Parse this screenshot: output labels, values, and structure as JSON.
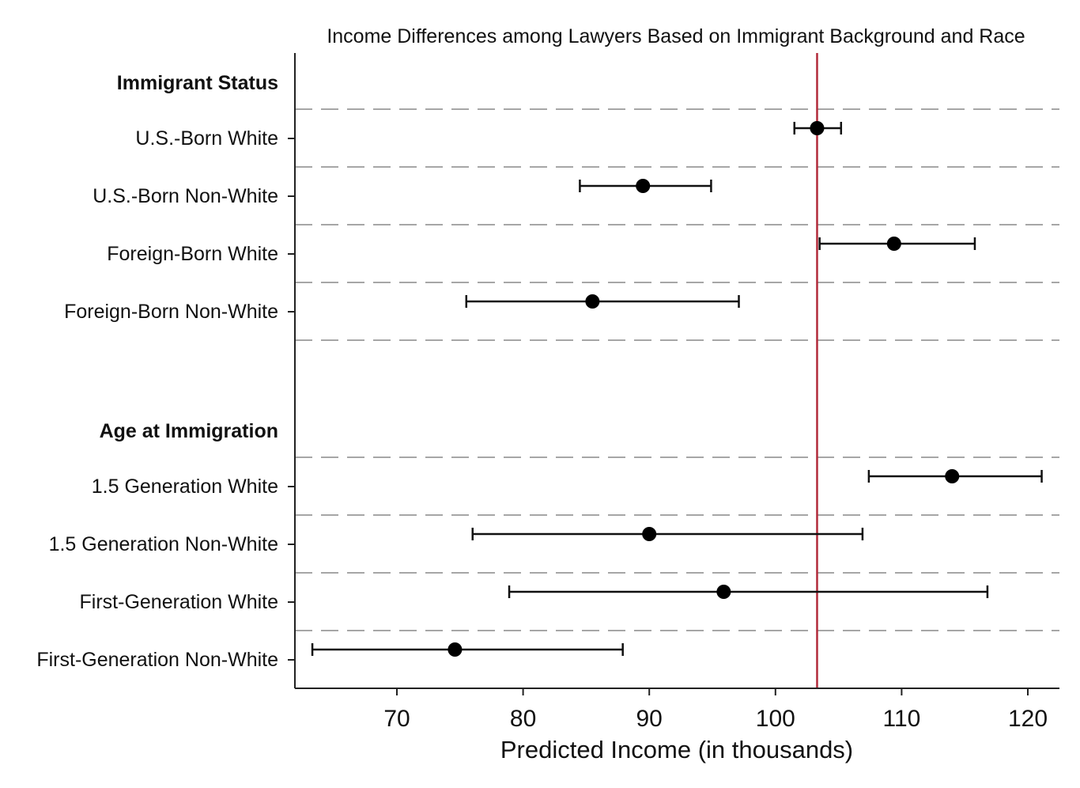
{
  "chart_data": {
    "type": "scatter",
    "title": "Income Differences among Lawyers Based on Immigrant Background and Race",
    "xlabel": "Predicted Income (in thousands)",
    "ylabel": "",
    "xlim": [
      62,
      123
    ],
    "xticks": [
      70,
      80,
      90,
      100,
      110,
      120
    ],
    "reference_line": {
      "x": 103.3,
      "color": "#b22a3a"
    },
    "grid": "dashed horizontal separators",
    "marker_color": "#000000",
    "groups": [
      {
        "label": "Immigrant Status",
        "rows": [
          {
            "label": "U.S.-Born White",
            "estimate": 103.3,
            "ci_low": 101.5,
            "ci_high": 105.2
          },
          {
            "label": "U.S.-Born Non-White",
            "estimate": 89.5,
            "ci_low": 84.5,
            "ci_high": 94.9
          },
          {
            "label": "Foreign-Born White",
            "estimate": 109.4,
            "ci_low": 103.5,
            "ci_high": 115.8
          },
          {
            "label": "Foreign-Born Non-White",
            "estimate": 85.5,
            "ci_low": 75.5,
            "ci_high": 97.1
          }
        ]
      },
      {
        "label": "Age at Immigration",
        "rows": [
          {
            "label": "1.5 Generation White",
            "estimate": 114.0,
            "ci_low": 107.4,
            "ci_high": 121.1
          },
          {
            "label": "1.5 Generation Non-White",
            "estimate": 90.0,
            "ci_low": 76.0,
            "ci_high": 106.9
          },
          {
            "label": "First-Generation White",
            "estimate": 95.9,
            "ci_low": 78.9,
            "ci_high": 116.8
          },
          {
            "label": "First-Generation Non-White",
            "estimate": 74.6,
            "ci_low": 63.3,
            "ci_high": 87.9
          }
        ]
      }
    ]
  }
}
